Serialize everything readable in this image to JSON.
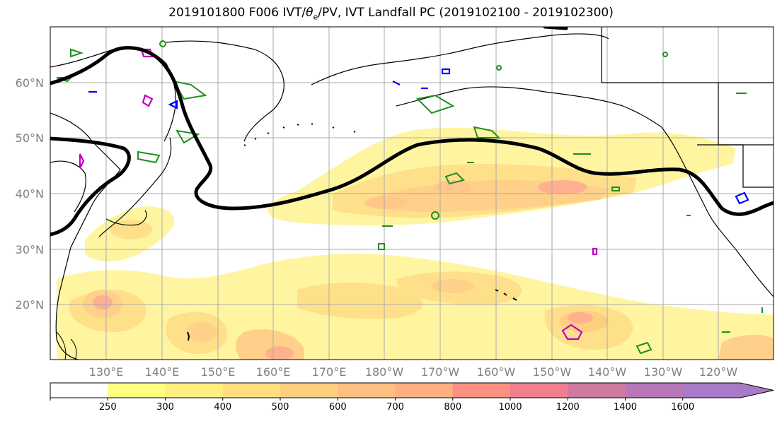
{
  "title": {
    "prefix": "2019101800 F006 IVT/",
    "theta": "θ",
    "theta_sub": "e",
    "suffix": "/PV, IVT Landfall PC (2019102100 - 2019102300)"
  },
  "map": {
    "lat_labels": [
      "60°N",
      "50°N",
      "40°N",
      "30°N",
      "20°N"
    ],
    "lon_labels": [
      "130°E",
      "140°E",
      "150°E",
      "160°E",
      "170°E",
      "180°W",
      "170°W",
      "160°W",
      "150°W",
      "140°W",
      "130°W",
      "120°W"
    ],
    "layers": [
      "IVT shading",
      "theta-e contours (green)",
      "PV contours (blue, magenta)",
      "IVT landfall contour (black)",
      "coastlines"
    ],
    "colors": {
      "contour_green": "#1f8f1f",
      "contour_blue": "#0000ff",
      "contour_magenta": "#c000c0",
      "landfall_contour": "#000000"
    }
  },
  "colorbar": {
    "ticks": [
      "250",
      "300",
      "400",
      "500",
      "600",
      "700",
      "800",
      "1000",
      "1200",
      "1400",
      "1600"
    ],
    "colors": [
      "#ffffff",
      "#ffff80",
      "#ffef80",
      "#ffdf80",
      "#ffcf80",
      "#ffbf80",
      "#ffaf80",
      "#ff8f80",
      "#f08090",
      "#d07aa0",
      "#b878b8",
      "#a87ac8"
    ],
    "extend": "max"
  }
}
